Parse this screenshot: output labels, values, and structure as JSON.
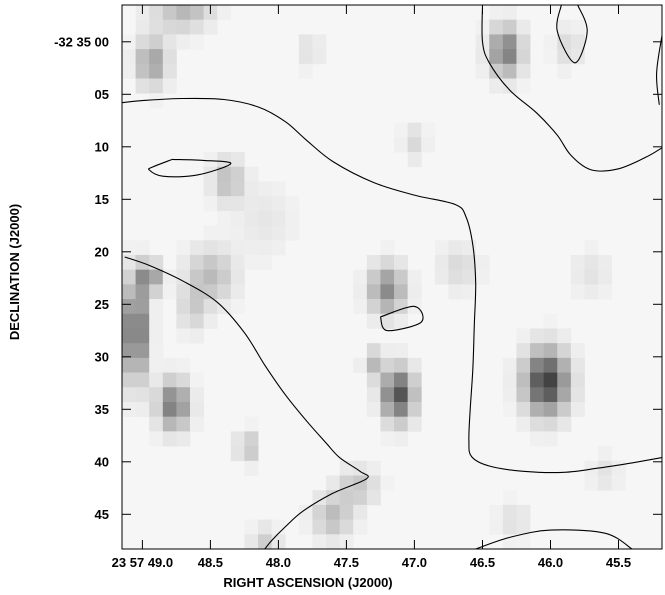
{
  "chart_data": {
    "type": "heatmap",
    "subtype": "astronomical image with contour overlay",
    "colormap": "grayscale, darker = brighter source",
    "xlabel": "RIGHT ASCENSION (J2000)",
    "ylabel": "DECLINATION (J2000)",
    "x_ticks": [
      {
        "value": 49.0,
        "label": "23 57 49.0"
      },
      {
        "value": 48.5,
        "label": "48.5"
      },
      {
        "value": 48.0,
        "label": "48.0"
      },
      {
        "value": 47.5,
        "label": "47.5"
      },
      {
        "value": 47.0,
        "label": "47.0"
      },
      {
        "value": 46.5,
        "label": "46.5"
      },
      {
        "value": 46.0,
        "label": "46.0"
      },
      {
        "value": 45.5,
        "label": "45.5"
      }
    ],
    "y_ticks": [
      {
        "value": 0,
        "label": "-32 35 00"
      },
      {
        "value": 5,
        "label": "05"
      },
      {
        "value": 10,
        "label": "10"
      },
      {
        "value": 15,
        "label": "15"
      },
      {
        "value": 20,
        "label": "20"
      },
      {
        "value": 25,
        "label": "25"
      },
      {
        "value": 30,
        "label": "30"
      },
      {
        "value": 35,
        "label": "35"
      },
      {
        "value": 40,
        "label": "40"
      },
      {
        "value": 45,
        "label": "45"
      }
    ],
    "xlim": [
      49.15,
      45.18
    ],
    "ylim": [
      -3.5,
      48.3
    ],
    "pixel_size": {
      "ra_s": 0.1,
      "dec_arcsec": 1.4
    },
    "sources": [
      {
        "ra": 48.93,
        "dec": 2.0,
        "peak": 0.45,
        "sigma_ra": 0.08,
        "sigma_dec": 1.5
      },
      {
        "ra": 48.77,
        "dec": -2.5,
        "peak": 0.15,
        "sigma_ra": 0.15,
        "sigma_dec": 1.5
      },
      {
        "ra": 47.77,
        "dec": 0.8,
        "peak": 0.12,
        "sigma_ra": 0.06,
        "sigma_dec": 1.2
      },
      {
        "ra": 46.33,
        "dec": 0.9,
        "peak": 0.65,
        "sigma_ra": 0.08,
        "sigma_dec": 1.6
      },
      {
        "ra": 45.87,
        "dec": 0.5,
        "peak": 0.15,
        "sigma_ra": 0.07,
        "sigma_dec": 1.3
      },
      {
        "ra": 47.0,
        "dec": 9.6,
        "peak": 0.15,
        "sigma_ra": 0.06,
        "sigma_dec": 1.2
      },
      {
        "ra": 48.37,
        "dec": 13.2,
        "peak": 0.3,
        "sigma_ra": 0.08,
        "sigma_dec": 1.4
      },
      {
        "ra": 47.2,
        "dec": 23.6,
        "peak": 0.55,
        "sigma_ra": 0.09,
        "sigma_dec": 1.6
      },
      {
        "ra": 48.5,
        "dec": 22.3,
        "peak": 0.3,
        "sigma_ra": 0.12,
        "sigma_dec": 1.8
      },
      {
        "ra": 49.05,
        "dec": 27.5,
        "peak": 0.8,
        "sigma_ra": 0.06,
        "sigma_dec": 3.2
      },
      {
        "ra": 48.95,
        "dec": 22.5,
        "peak": 0.55,
        "sigma_ra": 0.06,
        "sigma_dec": 1.0
      },
      {
        "ra": 48.63,
        "dec": 25.5,
        "peak": 0.2,
        "sigma_ra": 0.07,
        "sigma_dec": 1.5
      },
      {
        "ra": 46.03,
        "dec": 32.4,
        "peak": 0.95,
        "sigma_ra": 0.11,
        "sigma_dec": 2.1
      },
      {
        "ra": 47.12,
        "dec": 33.6,
        "peak": 0.85,
        "sigma_ra": 0.08,
        "sigma_dec": 1.7
      },
      {
        "ra": 48.77,
        "dec": 34.6,
        "peak": 0.65,
        "sigma_ra": 0.08,
        "sigma_dec": 1.6
      },
      {
        "ra": 47.3,
        "dec": 30.6,
        "peak": 0.3,
        "sigma_ra": 0.05,
        "sigma_dec": 1.0
      },
      {
        "ra": 48.23,
        "dec": 38.6,
        "peak": 0.3,
        "sigma_ra": 0.05,
        "sigma_dec": 1.0
      },
      {
        "ra": 47.42,
        "dec": 42.4,
        "peak": 0.25,
        "sigma_ra": 0.1,
        "sigma_dec": 1.2
      },
      {
        "ra": 47.6,
        "dec": 45.2,
        "peak": 0.3,
        "sigma_ra": 0.1,
        "sigma_dec": 1.4
      },
      {
        "ra": 46.27,
        "dec": 45.6,
        "peak": 0.12,
        "sigma_ra": 0.08,
        "sigma_dec": 1.2
      },
      {
        "ra": 45.6,
        "dec": 41.0,
        "peak": 0.1,
        "sigma_ra": 0.08,
        "sigma_dec": 1.2
      },
      {
        "ra": 46.67,
        "dec": 21.5,
        "peak": 0.15,
        "sigma_ra": 0.1,
        "sigma_dec": 1.5
      },
      {
        "ra": 48.1,
        "dec": 47.6,
        "peak": 0.2,
        "sigma_ra": 0.07,
        "sigma_dec": 1.0
      },
      {
        "ra": 48.65,
        "dec": -2.9,
        "peak": 0.2,
        "sigma_ra": 0.12,
        "sigma_dec": 1.0
      },
      {
        "ra": 45.7,
        "dec": 22.0,
        "peak": 0.1,
        "sigma_ra": 0.1,
        "sigma_dec": 1.5
      },
      {
        "ra": 48.1,
        "dec": 17.0,
        "peak": 0.08,
        "sigma_ra": 0.15,
        "sigma_dec": 2.5
      }
    ],
    "contours": [
      {
        "name": "upper-band",
        "points": [
          [
            49.15,
            5.8
          ],
          [
            49.0,
            5.6
          ],
          [
            48.7,
            5.4
          ],
          [
            48.4,
            5.5
          ],
          [
            48.15,
            6.2
          ],
          [
            47.95,
            7.6
          ],
          [
            47.8,
            9.3
          ],
          [
            47.6,
            11.4
          ],
          [
            47.3,
            13.4
          ],
          [
            47.0,
            14.6
          ],
          [
            46.7,
            15.5
          ],
          [
            46.62,
            16.7
          ],
          [
            46.57,
            19.4
          ],
          [
            46.55,
            23.0
          ],
          [
            46.56,
            27.0
          ],
          [
            46.57,
            31.0
          ],
          [
            46.59,
            35.0
          ],
          [
            46.6,
            38.0
          ],
          [
            46.58,
            39.5
          ],
          [
            46.45,
            40.4
          ],
          [
            46.2,
            40.9
          ],
          [
            45.9,
            41.0
          ],
          [
            45.65,
            40.6
          ],
          [
            45.4,
            40.1
          ],
          [
            45.18,
            39.6
          ]
        ]
      },
      {
        "name": "left-lobe",
        "points": [
          [
            48.78,
            11.2
          ],
          [
            48.55,
            11.3
          ],
          [
            48.35,
            11.6
          ],
          [
            48.6,
            12.7
          ],
          [
            48.85,
            12.8
          ],
          [
            48.95,
            12.2
          ],
          [
            48.92,
            11.9
          ],
          [
            48.78,
            11.2
          ]
        ]
      },
      {
        "name": "lower-band",
        "points": [
          [
            49.13,
            20.5
          ],
          [
            48.95,
            21.3
          ],
          [
            48.7,
            22.8
          ],
          [
            48.45,
            24.8
          ],
          [
            48.25,
            27.7
          ],
          [
            48.1,
            30.8
          ],
          [
            47.95,
            33.6
          ],
          [
            47.8,
            36.0
          ],
          [
            47.65,
            38.2
          ],
          [
            47.55,
            39.6
          ],
          [
            47.4,
            40.9
          ],
          [
            47.35,
            41.6
          ],
          [
            47.6,
            43.0
          ],
          [
            47.82,
            44.7
          ],
          [
            47.95,
            46.2
          ],
          [
            48.05,
            47.5
          ],
          [
            48.1,
            48.3
          ]
        ]
      },
      {
        "name": "center-loop",
        "points": [
          [
            47.25,
            26.2
          ],
          [
            47.0,
            25.2
          ],
          [
            46.95,
            26.7
          ],
          [
            47.2,
            27.5
          ],
          [
            47.25,
            26.2
          ]
        ]
      },
      {
        "name": "top-right-arc",
        "points": [
          [
            46.5,
            -3.5
          ],
          [
            46.5,
            0.0
          ],
          [
            46.45,
            2.0
          ],
          [
            46.3,
            4.6
          ],
          [
            46.1,
            6.8
          ],
          [
            45.95,
            8.9
          ],
          [
            45.85,
            10.8
          ],
          [
            45.7,
            12.2
          ],
          [
            45.5,
            12.1
          ],
          [
            45.3,
            11.0
          ],
          [
            45.18,
            10.1
          ]
        ]
      },
      {
        "name": "top-right-loop",
        "points": [
          [
            45.92,
            -3.5
          ],
          [
            45.95,
            -1.0
          ],
          [
            45.82,
            2.0
          ],
          [
            45.73,
            -1.0
          ],
          [
            45.8,
            -3.5
          ]
        ]
      },
      {
        "name": "right-edge-arc",
        "points": [
          [
            45.18,
            -0.6
          ],
          [
            45.22,
            3.0
          ],
          [
            45.2,
            6.0
          ]
        ]
      },
      {
        "name": "bottom-arc",
        "points": [
          [
            46.55,
            48.3
          ],
          [
            46.3,
            47.2
          ],
          [
            46.0,
            46.5
          ],
          [
            45.6,
            46.8
          ],
          [
            45.4,
            48.3
          ]
        ]
      }
    ]
  }
}
